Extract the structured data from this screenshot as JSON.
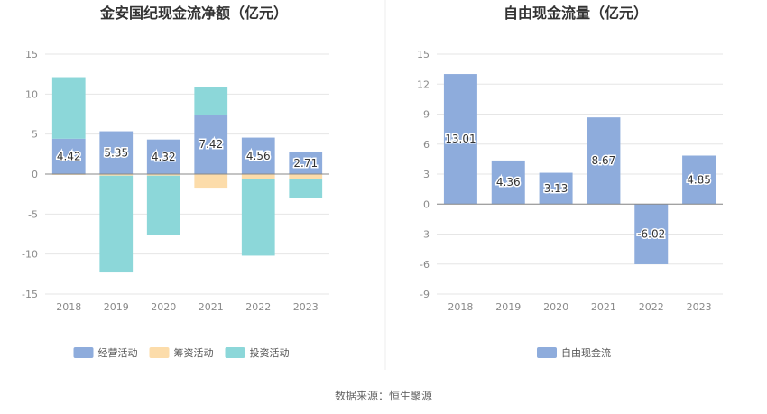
{
  "source_text": "数据来源：恒生聚源",
  "chart_data": [
    {
      "type": "bar",
      "stacked": true,
      "title": "金安国纪现金流净额（亿元）",
      "categories": [
        "2018",
        "2019",
        "2020",
        "2021",
        "2022",
        "2023"
      ],
      "ylim": [
        -15,
        15
      ],
      "yticks": [
        15,
        10,
        5,
        0,
        -5,
        -10,
        -15
      ],
      "ytick_labels": [
        "15",
        "10",
        "5",
        "0",
        "-5",
        "-10",
        "-15"
      ],
      "grid": true,
      "legend_position": "bottom",
      "series": [
        {
          "name": "经营活动",
          "color": "#8eacdc",
          "values": [
            4.42,
            5.35,
            4.32,
            7.42,
            4.56,
            2.71
          ],
          "labels": [
            "4.42",
            "5.35",
            "4.32",
            "7.42",
            "4.56",
            "2.71"
          ]
        },
        {
          "name": "筹资活动",
          "color": "#fcdcaa",
          "values": [
            -0.1,
            -0.2,
            -0.2,
            -1.7,
            -0.6,
            -0.6
          ]
        },
        {
          "name": "投资活动",
          "color": "#8cd7d9",
          "values": [
            7.7,
            -12.1,
            -7.4,
            3.5,
            -9.6,
            -2.4
          ]
        }
      ]
    },
    {
      "type": "bar",
      "title": "自由现金流量（亿元）",
      "categories": [
        "2018",
        "2019",
        "2020",
        "2021",
        "2022",
        "2023"
      ],
      "ylim": [
        -9,
        15
      ],
      "yticks": [
        15,
        12,
        9,
        6,
        3,
        0,
        -3,
        -6,
        -9
      ],
      "ytick_labels": [
        "15",
        "12",
        "9",
        "6",
        "3",
        "0",
        "-3",
        "-6",
        "-9"
      ],
      "grid": true,
      "legend_position": "bottom",
      "series": [
        {
          "name": "自由现金流",
          "color": "#8eacdc",
          "values": [
            13.01,
            4.36,
            3.13,
            8.67,
            -6.02,
            4.85
          ],
          "labels": [
            "13.01",
            "4.36",
            "3.13",
            "8.67",
            "-6.02",
            "4.85"
          ]
        }
      ]
    }
  ]
}
